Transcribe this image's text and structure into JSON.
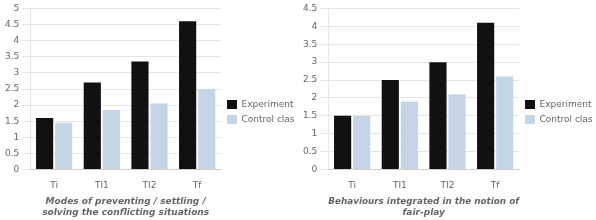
{
  "chart_data": [
    {
      "type": "bar",
      "categories": [
        "Ti",
        "TI1",
        "TI2",
        "Tf"
      ],
      "series": [
        {
          "name": "Experimental class",
          "color": "#111111",
          "values": [
            1.6,
            2.7,
            3.35,
            4.6
          ]
        },
        {
          "name": "Control class",
          "color": "#c5d5e5",
          "values": [
            1.45,
            1.85,
            2.05,
            2.5
          ]
        }
      ],
      "xlabel": "Modes of preventing / settling / solving the conflicting situations",
      "ylim": [
        0,
        5
      ],
      "yticks": [
        0,
        0.5,
        1,
        1.5,
        2,
        2.5,
        3,
        3.5,
        4,
        4.5,
        5
      ],
      "grid": true,
      "legend": "right"
    },
    {
      "type": "bar",
      "categories": [
        "Ti",
        "TI1",
        "TI2",
        "Tf"
      ],
      "series": [
        {
          "name": "Experimental class",
          "color": "#111111",
          "values": [
            1.5,
            2.5,
            3.0,
            4.1
          ]
        },
        {
          "name": "Control class",
          "color": "#c5d5e5",
          "values": [
            1.5,
            1.9,
            2.1,
            2.6
          ]
        }
      ],
      "xlabel": "Behaviours integrated in the notion of fair-play",
      "ylim": [
        0,
        4.5
      ],
      "yticks": [
        0,
        0.5,
        1,
        1.5,
        2,
        2.5,
        3,
        3.5,
        4,
        4.5
      ],
      "grid": true,
      "legend": "right"
    }
  ]
}
